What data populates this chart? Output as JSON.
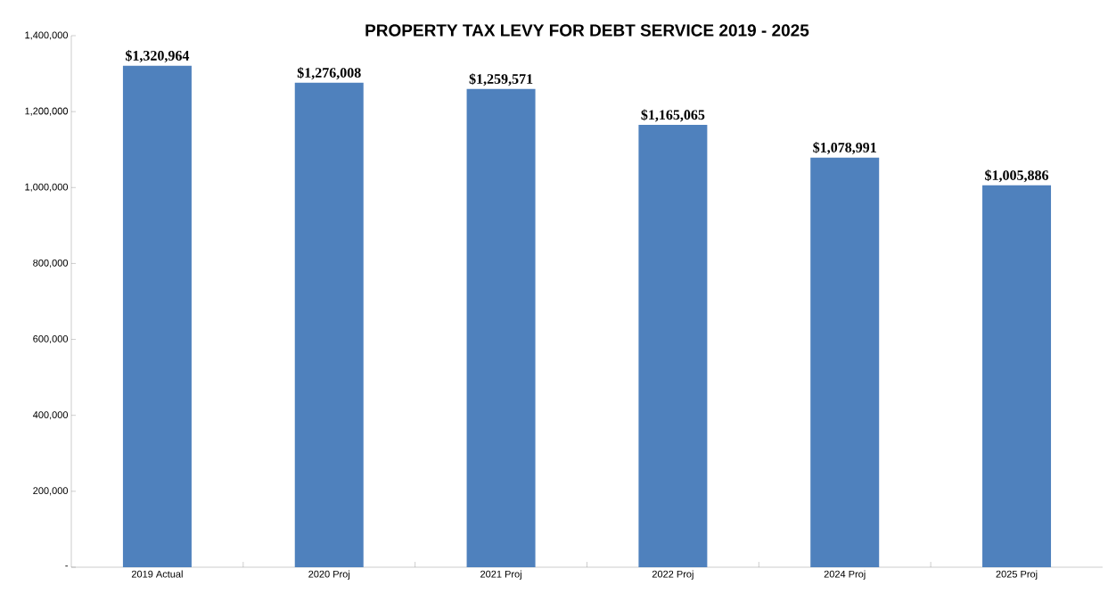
{
  "chart_data": {
    "type": "bar",
    "title": "PROPERTY TAX LEVY FOR DEBT SERVICE 2019 - 2025",
    "categories": [
      "2019 Actual",
      "2020 Proj",
      "2021 Proj",
      "2022 Proj",
      "2024 Proj",
      "2025 Proj"
    ],
    "values": [
      1320964,
      1276008,
      1259571,
      1165065,
      1078991,
      1005886
    ],
    "value_labels": [
      "$1,320,964",
      "$1,276,008",
      "$1,259,571",
      "$1,165,065",
      "$1,078,991",
      "$1,005,886"
    ],
    "color": "#4f81bd",
    "ylim": [
      0,
      1400000
    ],
    "yticks": [
      {
        "value": 0,
        "label": "-"
      },
      {
        "value": 200000,
        "label": "200,000"
      },
      {
        "value": 400000,
        "label": "400,000"
      },
      {
        "value": 600000,
        "label": "600,000"
      },
      {
        "value": 800000,
        "label": "800,000"
      },
      {
        "value": 1000000,
        "label": "1,000,000"
      },
      {
        "value": 1200000,
        "label": "1,200,000"
      },
      {
        "value": 1400000,
        "label": "1,400,000"
      }
    ],
    "grid": false
  }
}
